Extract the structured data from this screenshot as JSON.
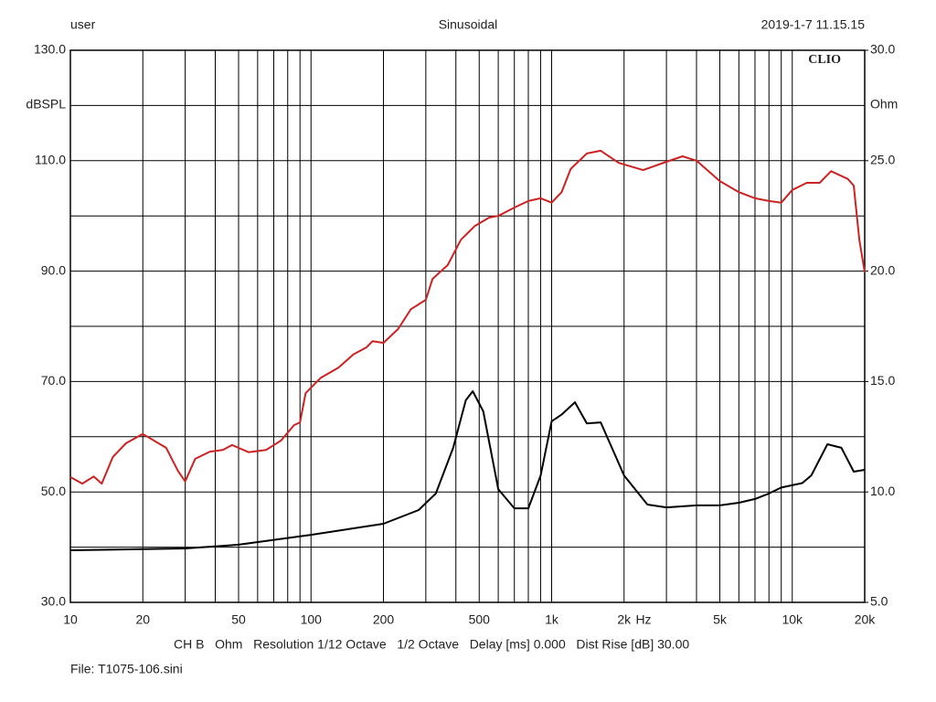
{
  "header": {
    "left": "user",
    "center": "Sinusoidal",
    "right": "2019-1-7 11.15.15"
  },
  "chart_data": {
    "type": "line",
    "brand": "CLIO",
    "xlabel": "Hz",
    "ylabel": "dBSPL",
    "y2label": "Ohm",
    "log_x": true,
    "xlim": [
      10,
      20000
    ],
    "xticks": [
      10,
      20,
      50,
      100,
      200,
      500,
      {
        "value": 1000,
        "label": "1k"
      },
      {
        "value": 2000,
        "label": "2k"
      },
      {
        "value": 5000,
        "label": "5k"
      },
      {
        "value": 10000,
        "label": "10k"
      },
      {
        "value": 20000,
        "label": "20k"
      }
    ],
    "xgrid": [
      30,
      40,
      60,
      70,
      80,
      90,
      300,
      400,
      600,
      700,
      800,
      900,
      3000,
      4000,
      6000,
      7000,
      8000,
      9000
    ],
    "ylim": [
      30,
      130
    ],
    "yticks": [
      {
        "value": 30,
        "label": "30.0"
      },
      {
        "value": 50,
        "label": "50.0"
      },
      {
        "value": 70,
        "label": "70.0"
      },
      {
        "value": 90,
        "label": "90.0"
      },
      {
        "value": 110,
        "label": "110.0"
      },
      {
        "value": 130,
        "label": "130.0"
      }
    ],
    "ygrid": [
      40,
      60,
      80,
      100,
      120
    ],
    "y2lim": [
      5,
      30
    ],
    "y2ticks": [
      {
        "value": 5,
        "label": "5.0"
      },
      {
        "value": 10,
        "label": "10.0"
      },
      {
        "value": 15,
        "label": "15.0"
      },
      {
        "value": 20,
        "label": "20.0"
      },
      {
        "value": 25,
        "label": "25.0"
      },
      {
        "value": 30,
        "label": "30.0"
      }
    ],
    "series": [
      {
        "color": "#cc2222",
        "x": [
          10,
          11.2,
          12.5,
          13.5,
          15,
          17,
          20,
          25,
          28,
          30,
          33,
          38,
          43,
          47,
          55,
          65,
          75,
          85,
          90,
          95,
          110,
          130,
          150,
          170,
          180,
          200,
          230,
          260,
          300,
          320,
          370,
          420,
          480,
          550,
          600,
          700,
          800,
          900,
          1000,
          1100,
          1200,
          1400,
          1600,
          1900,
          2400,
          3000,
          3500,
          4000,
          5000,
          6000,
          7000,
          8000,
          9000,
          10000,
          11500,
          13000,
          14500,
          17000,
          18000,
          19000,
          20000
        ],
        "values": [
          52.7,
          51.5,
          52.8,
          51.5,
          56.3,
          58.8,
          60.5,
          58,
          53.8,
          51.9,
          56,
          57.3,
          57.6,
          58.5,
          57.2,
          57.6,
          59.3,
          62.1,
          62.6,
          67.9,
          70.7,
          72.5,
          74.9,
          76.2,
          77.3,
          77,
          79.5,
          83.1,
          84.8,
          88.6,
          91.1,
          95.7,
          98.2,
          99.7,
          100,
          101.5,
          102.7,
          103.2,
          102.4,
          104.3,
          108.5,
          111.3,
          111.8,
          109.6,
          108.3,
          109.8,
          110.8,
          110,
          106.3,
          104.3,
          103.2,
          102.7,
          102.4,
          104.7,
          106,
          106,
          108.1,
          106.7,
          105.5,
          95.7,
          89.8
        ]
      },
      {
        "color": "#000000",
        "axis": "y2",
        "x": [
          10,
          30,
          50,
          100,
          200,
          280,
          330,
          390,
          440,
          470,
          520,
          600,
          700,
          800,
          900,
          1000,
          1100,
          1250,
          1400,
          1600,
          2000,
          2500,
          3000,
          4000,
          5000,
          6000,
          7000,
          8000,
          9000,
          11000,
          12000,
          14000,
          16000,
          18000,
          20000
        ],
        "values": [
          7.36,
          7.44,
          7.61,
          8.06,
          8.56,
          9.18,
          9.93,
          12.0,
          14.15,
          14.56,
          13.65,
          10.13,
          9.26,
          9.26,
          10.75,
          13.2,
          13.5,
          14.06,
          13.1,
          13.15,
          10.75,
          9.43,
          9.3,
          9.39,
          9.39,
          9.51,
          9.68,
          9.93,
          10.2,
          10.4,
          10.75,
          12.16,
          12.0,
          10.92,
          11.0
        ]
      }
    ]
  },
  "footer": {
    "settings": "CH B   Ohm   Resolution 1/12 Octave   1/2 Octave   Delay [ms] 0.000   Dist Rise [dB] 30.00",
    "file": "File: T1075-106.sini"
  }
}
